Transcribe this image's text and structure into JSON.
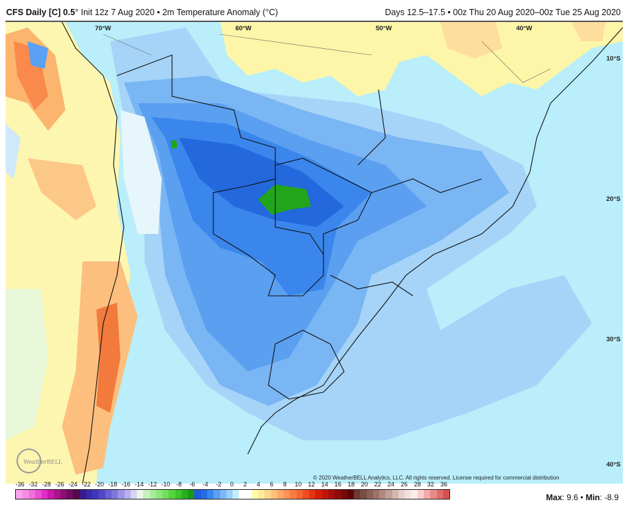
{
  "header": {
    "model": "CFS Daily [C] 0.5",
    "deg": "°",
    "init": " Init 12z 7 Aug 2020 • 2m Temperature Anomaly (°C)",
    "valid": "Days 12.5–17.5 • 00z Thu 20 Aug 2020–00z Tue 25 Aug 2020"
  },
  "map": {
    "lon_labels": [
      "70°W",
      "60°W",
      "50°W",
      "40°W"
    ],
    "lat_labels": [
      "10°S",
      "20°S",
      "30°S",
      "40°S"
    ],
    "copyright": "© 2020 WeatherBELL Analytics, LLC. All rights reserved. License required for commercial distribution",
    "logo_text": "WeatherBELL"
  },
  "colorbar": {
    "labels": [
      "-36",
      "-32",
      "-28",
      "-26",
      "-24",
      "-22",
      "-20",
      "-18",
      "-16",
      "-14",
      "-12",
      "-10",
      "-8",
      "-6",
      "-4",
      "-2",
      "0",
      "2",
      "4",
      "6",
      "8",
      "10",
      "12",
      "14",
      "16",
      "18",
      "20",
      "22",
      "24",
      "26",
      "28",
      "32",
      "36"
    ],
    "colors": [
      "#f9a3ea",
      "#f58ee3",
      "#f270dc",
      "#ee4fd3",
      "#e22cc6",
      "#c81aa9",
      "#a8138c",
      "#8a0f74",
      "#6e0c5e",
      "#55084a",
      "#3c1a8e",
      "#3a2aa8",
      "#4235bd",
      "#5147c9",
      "#6a5fd4",
      "#7f78db",
      "#9d93e5",
      "#b8b1ee",
      "#d6d3f6",
      "#e9f8e3",
      "#c7f0bd",
      "#a9ea9b",
      "#8de57c",
      "#72df5d",
      "#55d440",
      "#3bc42c",
      "#27b01e",
      "#1a9a14",
      "#1f5ed6",
      "#256de8",
      "#3a86f0",
      "#5aa0f4",
      "#7bb8f7",
      "#9ccff8",
      "#bdeef9",
      "#ffffff",
      "#ffffff",
      "#fefca8",
      "#feec9e",
      "#fdd78b",
      "#fdc078",
      "#fca866",
      "#fb9354",
      "#f97c42",
      "#f66532",
      "#f04c22",
      "#e63212",
      "#d51e0a",
      "#bf150a",
      "#a8100a",
      "#900c08",
      "#770906",
      "#5e0404",
      "#6a3a30",
      "#7a4c42",
      "#8c5e54",
      "#9e7268",
      "#b08880",
      "#c29f97",
      "#d4b7b0",
      "#e6d0ca",
      "#f1e1dc",
      "#f9eeea",
      "#fbcccc",
      "#f3aaaa",
      "#eb8a8a",
      "#e06b6b",
      "#d85050"
    ]
  },
  "stats": {
    "max_label": "Max",
    "max_value": ": 9.6 • ",
    "min_label": "Min",
    "min_value": ": -8.9"
  }
}
